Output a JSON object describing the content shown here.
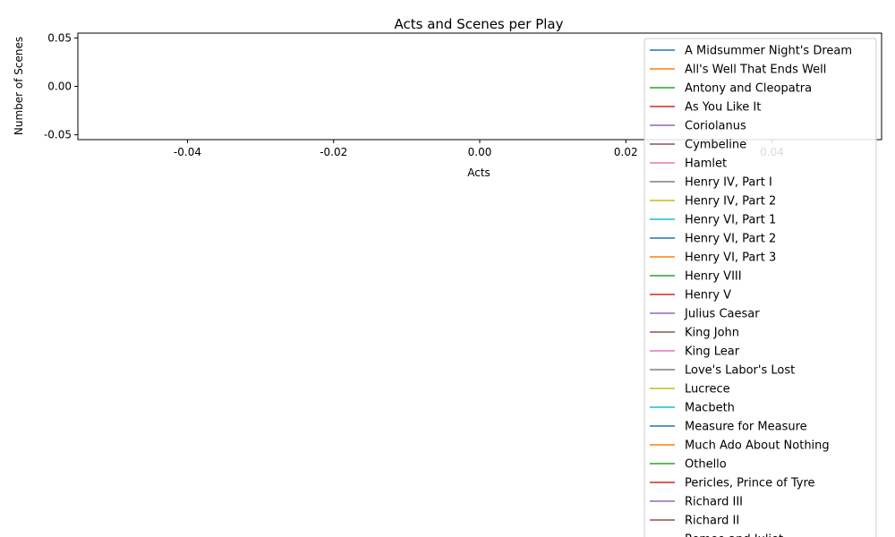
{
  "chart_data": {
    "type": "line",
    "title": "Acts and Scenes per Play",
    "xlabel": "Acts",
    "ylabel": "Number of Scenes",
    "xlim": [
      -0.055,
      0.055
    ],
    "ylim": [
      -0.055,
      0.055
    ],
    "x_ticks": [
      "-0.04",
      "-0.02",
      "0.00",
      "0.02",
      "0.04"
    ],
    "y_ticks": [
      "-0.05",
      "0.00",
      "0.05"
    ],
    "legend_position": "top-right",
    "grid": false,
    "series": [
      {
        "name": "A Midsummer Night's Dream",
        "color": "#1f77b4",
        "values": []
      },
      {
        "name": "All's Well That Ends Well",
        "color": "#ff7f0e",
        "values": []
      },
      {
        "name": "Antony and Cleopatra",
        "color": "#2ca02c",
        "values": []
      },
      {
        "name": "As You Like It",
        "color": "#d62728",
        "values": []
      },
      {
        "name": "Coriolanus",
        "color": "#9467bd",
        "values": []
      },
      {
        "name": "Cymbeline",
        "color": "#8c564b",
        "values": []
      },
      {
        "name": "Hamlet",
        "color": "#e377c2",
        "values": []
      },
      {
        "name": "Henry IV, Part I",
        "color": "#7f7f7f",
        "values": []
      },
      {
        "name": "Henry IV, Part 2",
        "color": "#bcbd22",
        "values": []
      },
      {
        "name": "Henry VI, Part 1",
        "color": "#17becf",
        "values": []
      },
      {
        "name": "Henry VI, Part 2",
        "color": "#1f77b4",
        "values": []
      },
      {
        "name": "Henry VI, Part 3",
        "color": "#ff7f0e",
        "values": []
      },
      {
        "name": "Henry VIII",
        "color": "#2ca02c",
        "values": []
      },
      {
        "name": "Henry V",
        "color": "#d62728",
        "values": []
      },
      {
        "name": "Julius Caesar",
        "color": "#9467bd",
        "values": []
      },
      {
        "name": "King John",
        "color": "#8c564b",
        "values": []
      },
      {
        "name": "King Lear",
        "color": "#e377c2",
        "values": []
      },
      {
        "name": "Love's Labor's Lost",
        "color": "#7f7f7f",
        "values": []
      },
      {
        "name": "Lucrece",
        "color": "#bcbd22",
        "values": []
      },
      {
        "name": "Macbeth",
        "color": "#17becf",
        "values": []
      },
      {
        "name": "Measure for Measure",
        "color": "#1f77b4",
        "values": []
      },
      {
        "name": "Much Ado About Nothing",
        "color": "#ff7f0e",
        "values": []
      },
      {
        "name": "Othello",
        "color": "#2ca02c",
        "values": []
      },
      {
        "name": "Pericles, Prince of Tyre",
        "color": "#d62728",
        "values": []
      },
      {
        "name": "Richard III",
        "color": "#9467bd",
        "values": []
      },
      {
        "name": "Richard II",
        "color": "#8c564b",
        "values": []
      },
      {
        "name": "Romeo and Juliet",
        "color": "#e377c2",
        "values": []
      }
    ]
  }
}
